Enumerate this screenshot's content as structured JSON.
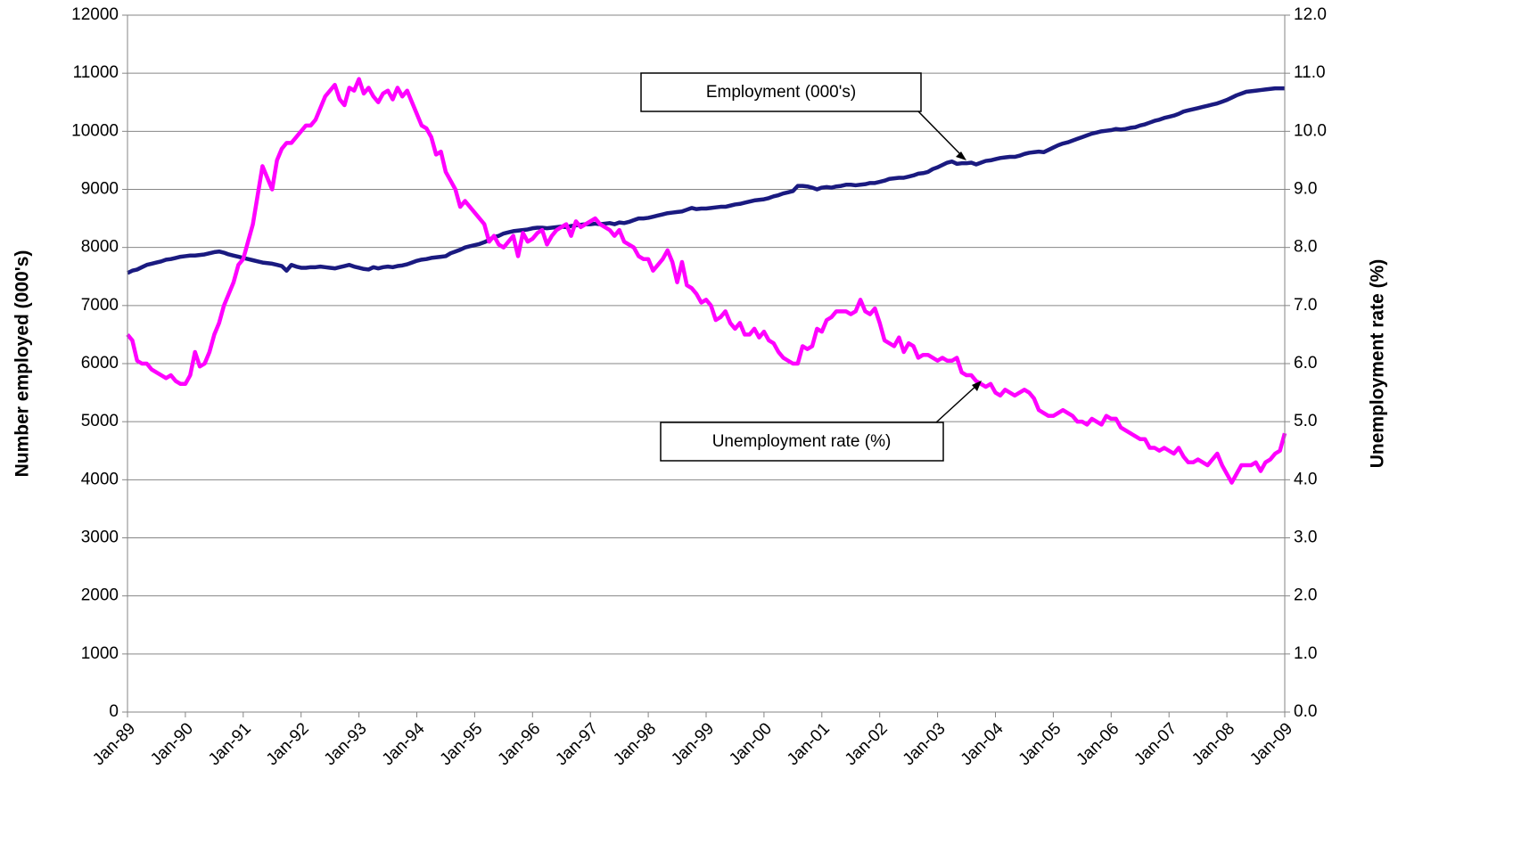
{
  "chart_data": {
    "type": "line",
    "categories": [
      "Jan-89",
      null,
      null,
      null,
      null,
      null,
      null,
      null,
      null,
      null,
      null,
      null,
      "Jan-90",
      null,
      null,
      null,
      null,
      null,
      null,
      null,
      null,
      null,
      null,
      null,
      "Jan-91",
      null,
      null,
      null,
      null,
      null,
      null,
      null,
      null,
      null,
      null,
      null,
      "Jan-92",
      null,
      null,
      null,
      null,
      null,
      null,
      null,
      null,
      null,
      null,
      null,
      "Jan-93",
      null,
      null,
      null,
      null,
      null,
      null,
      null,
      null,
      null,
      null,
      null,
      "Jan-94",
      null,
      null,
      null,
      null,
      null,
      null,
      null,
      null,
      null,
      null,
      null,
      "Jan-95",
      null,
      null,
      null,
      null,
      null,
      null,
      null,
      null,
      null,
      null,
      null,
      "Jan-96",
      null,
      null,
      null,
      null,
      null,
      null,
      null,
      null,
      null,
      null,
      null,
      "Jan-97",
      null,
      null,
      null,
      null,
      null,
      null,
      null,
      null,
      null,
      null,
      null,
      "Jan-98",
      null,
      null,
      null,
      null,
      null,
      null,
      null,
      null,
      null,
      null,
      null,
      "Jan-99",
      null,
      null,
      null,
      null,
      null,
      null,
      null,
      null,
      null,
      null,
      null,
      "Jan-00",
      null,
      null,
      null,
      null,
      null,
      null,
      null,
      null,
      null,
      null,
      null,
      "Jan-01",
      null,
      null,
      null,
      null,
      null,
      null,
      null,
      null,
      null,
      null,
      null,
      "Jan-02",
      null,
      null,
      null,
      null,
      null,
      null,
      null,
      null,
      null,
      null,
      null,
      "Jan-03",
      null,
      null,
      null,
      null,
      null,
      null,
      null,
      null,
      null,
      null,
      null,
      "Jan-04",
      null,
      null,
      null,
      null,
      null,
      null,
      null,
      null,
      null,
      null,
      null,
      "Jan-05",
      null,
      null,
      null,
      null,
      null,
      null,
      null,
      null,
      null,
      null,
      null,
      "Jan-06",
      null,
      null,
      null,
      null,
      null,
      null,
      null,
      null,
      null,
      null,
      null,
      "Jan-07",
      null,
      null,
      null,
      null,
      null,
      null,
      null,
      null,
      null,
      null,
      null,
      "Jan-08",
      null,
      null,
      null,
      null,
      null,
      null,
      null,
      null,
      null,
      null,
      null,
      "Jan-09"
    ],
    "series": [
      {
        "name": "Employment (000's)",
        "color": "#1a1a80",
        "values": [
          7560,
          7600,
          7620,
          7660,
          7700,
          7720,
          7740,
          7760,
          7790,
          7800,
          7820,
          7840,
          7850,
          7860,
          7860,
          7870,
          7880,
          7900,
          7920,
          7930,
          7910,
          7880,
          7860,
          7840,
          7820,
          7800,
          7780,
          7760,
          7740,
          7730,
          7720,
          7700,
          7680,
          7600,
          7700,
          7670,
          7650,
          7650,
          7660,
          7660,
          7670,
          7660,
          7650,
          7640,
          7660,
          7680,
          7700,
          7670,
          7650,
          7630,
          7620,
          7660,
          7640,
          7660,
          7670,
          7660,
          7680,
          7690,
          7710,
          7740,
          7770,
          7790,
          7800,
          7820,
          7830,
          7840,
          7850,
          7900,
          7930,
          7960,
          8000,
          8020,
          8040,
          8060,
          8090,
          8130,
          8180,
          8200,
          8240,
          8260,
          8280,
          8290,
          8300,
          8310,
          8330,
          8340,
          8340,
          8330,
          8340,
          8350,
          8360,
          8350,
          8370,
          8380,
          8390,
          8400,
          8400,
          8410,
          8400,
          8410,
          8420,
          8400,
          8430,
          8420,
          8440,
          8470,
          8500,
          8500,
          8510,
          8530,
          8550,
          8570,
          8590,
          8600,
          8610,
          8620,
          8650,
          8680,
          8660,
          8670,
          8670,
          8680,
          8690,
          8700,
          8700,
          8720,
          8740,
          8750,
          8770,
          8790,
          8810,
          8820,
          8830,
          8850,
          8880,
          8900,
          8930,
          8950,
          8970,
          9060,
          9060,
          9050,
          9030,
          9000,
          9030,
          9040,
          9030,
          9050,
          9060,
          9080,
          9080,
          9070,
          9080,
          9090,
          9110,
          9110,
          9130,
          9150,
          9180,
          9190,
          9200,
          9200,
          9220,
          9240,
          9270,
          9280,
          9300,
          9350,
          9380,
          9420,
          9460,
          9480,
          9440,
          9450,
          9450,
          9460,
          9430,
          9460,
          9490,
          9500,
          9520,
          9540,
          9550,
          9560,
          9560,
          9580,
          9610,
          9630,
          9640,
          9650,
          9640,
          9680,
          9720,
          9760,
          9790,
          9810,
          9840,
          9870,
          9900,
          9930,
          9960,
          9980,
          10000,
          10010,
          10020,
          10040,
          10030,
          10040,
          10060,
          10070,
          10100,
          10120,
          10150,
          10180,
          10200,
          10230,
          10250,
          10270,
          10300,
          10340,
          10360,
          10380,
          10400,
          10420,
          10440,
          10460,
          10480,
          10510,
          10540,
          10580,
          10620,
          10650,
          10680,
          10690,
          10700,
          10710,
          10720,
          10730,
          10740,
          10740,
          10740
        ]
      },
      {
        "name": "Unemployment rate (%)",
        "color": "#ff00ff",
        "axis": "y2",
        "values": [
          6.5,
          6.4,
          6.05,
          6.0,
          6.0,
          5.9,
          5.85,
          5.8,
          5.75,
          5.8,
          5.7,
          5.65,
          5.65,
          5.8,
          6.2,
          5.95,
          6.0,
          6.2,
          6.5,
          6.7,
          7.0,
          7.2,
          7.4,
          7.7,
          7.8,
          8.1,
          8.4,
          8.9,
          9.4,
          9.2,
          9.0,
          9.5,
          9.7,
          9.8,
          9.8,
          9.9,
          10.0,
          10.1,
          10.1,
          10.2,
          10.4,
          10.6,
          10.7,
          10.8,
          10.55,
          10.45,
          10.75,
          10.7,
          10.9,
          10.65,
          10.75,
          10.6,
          10.5,
          10.65,
          10.7,
          10.55,
          10.75,
          10.6,
          10.7,
          10.5,
          10.3,
          10.1,
          10.05,
          9.9,
          9.6,
          9.65,
          9.3,
          9.15,
          9.0,
          8.7,
          8.8,
          8.7,
          8.6,
          8.5,
          8.4,
          8.1,
          8.2,
          8.05,
          8.0,
          8.1,
          8.2,
          7.85,
          8.25,
          8.1,
          8.15,
          8.25,
          8.3,
          8.05,
          8.2,
          8.3,
          8.35,
          8.4,
          8.2,
          8.45,
          8.35,
          8.4,
          8.45,
          8.5,
          8.4,
          8.35,
          8.3,
          8.2,
          8.3,
          8.1,
          8.05,
          8.0,
          7.85,
          7.8,
          7.8,
          7.6,
          7.7,
          7.8,
          7.95,
          7.75,
          7.4,
          7.75,
          7.35,
          7.3,
          7.2,
          7.05,
          7.1,
          7.0,
          6.75,
          6.8,
          6.9,
          6.7,
          6.6,
          6.7,
          6.5,
          6.5,
          6.6,
          6.45,
          6.55,
          6.4,
          6.35,
          6.2,
          6.1,
          6.05,
          6.0,
          6.0,
          6.3,
          6.25,
          6.3,
          6.6,
          6.55,
          6.75,
          6.8,
          6.9,
          6.9,
          6.9,
          6.85,
          6.9,
          7.1,
          6.9,
          6.85,
          6.95,
          6.7,
          6.4,
          6.35,
          6.3,
          6.45,
          6.2,
          6.35,
          6.3,
          6.1,
          6.15,
          6.15,
          6.1,
          6.05,
          6.1,
          6.05,
          6.05,
          6.1,
          5.85,
          5.8,
          5.8,
          5.7,
          5.65,
          5.6,
          5.65,
          5.5,
          5.45,
          5.55,
          5.5,
          5.45,
          5.5,
          5.55,
          5.5,
          5.4,
          5.2,
          5.15,
          5.1,
          5.1,
          5.15,
          5.2,
          5.15,
          5.1,
          5.0,
          5.0,
          4.95,
          5.05,
          5.0,
          4.95,
          5.1,
          5.05,
          5.05,
          4.9,
          4.85,
          4.8,
          4.75,
          4.7,
          4.7,
          4.55,
          4.55,
          4.5,
          4.55,
          4.5,
          4.45,
          4.55,
          4.4,
          4.3,
          4.3,
          4.35,
          4.3,
          4.25,
          4.35,
          4.45,
          4.25,
          4.1,
          3.95,
          4.1,
          4.25,
          4.25,
          4.25,
          4.3,
          4.15,
          4.3,
          4.35,
          4.45,
          4.5,
          4.8
        ]
      }
    ],
    "ylabel": "Number employed (000's)",
    "y2label": "Unemployment rate (%)",
    "ylim": [
      0,
      12000
    ],
    "yticks": [
      0,
      1000,
      2000,
      3000,
      4000,
      5000,
      6000,
      7000,
      8000,
      9000,
      10000,
      11000,
      12000
    ],
    "y2lim": [
      0,
      12
    ],
    "y2ticks": [
      {
        "value": 0,
        "label": "0.0"
      },
      {
        "value": 1,
        "label": "1.0"
      },
      {
        "value": 2,
        "label": "2.0"
      },
      {
        "value": 3,
        "label": "3.0"
      },
      {
        "value": 4,
        "label": "4.0"
      },
      {
        "value": 5,
        "label": "5.0"
      },
      {
        "value": 6,
        "label": "6.0"
      },
      {
        "value": 7,
        "label": "7.0"
      },
      {
        "value": 8,
        "label": "8.0"
      },
      {
        "value": 9,
        "label": "9.0"
      },
      {
        "value": 10,
        "label": "10.0"
      },
      {
        "value": 11,
        "label": "11.0"
      },
      {
        "value": 12,
        "label": "12.0"
      }
    ],
    "grid": true,
    "annotations": [
      "Employment (000's)",
      "Unemployment rate (%)"
    ]
  }
}
